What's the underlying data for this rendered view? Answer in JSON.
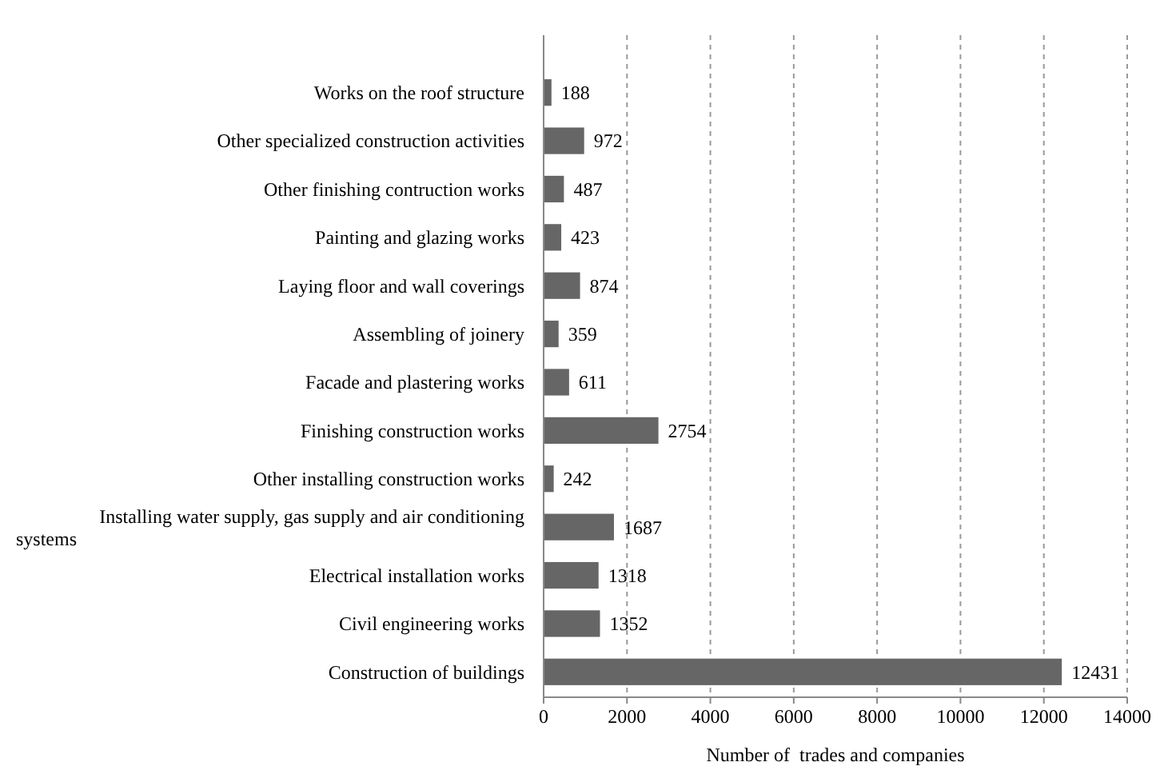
{
  "chart_data": {
    "type": "bar",
    "orientation": "horizontal",
    "xlabel": "Number of  trades and companies",
    "categories": [
      "Works on the roof structure",
      "Other specialized construction activities",
      "Other finishing contruction works",
      "Painting and glazing works",
      "Laying floor and wall coverings",
      "Assembling of joinery",
      "Facade and plastering works",
      "Finishing construction works",
      "Other installing construction works",
      "Installing water supply, gas supply and air conditioning systems",
      "Electrical installation works",
      "Civil engineering works",
      "Construction of buildings"
    ],
    "values": [
      188,
      972,
      487,
      423,
      874,
      359,
      611,
      2754,
      242,
      1687,
      1318,
      1352,
      12431
    ],
    "color": "#666666",
    "xlim": [
      0,
      14000
    ],
    "xticks": [
      0,
      2000,
      4000,
      6000,
      8000,
      10000,
      12000,
      14000
    ],
    "grid": "x",
    "data_labels": true
  }
}
